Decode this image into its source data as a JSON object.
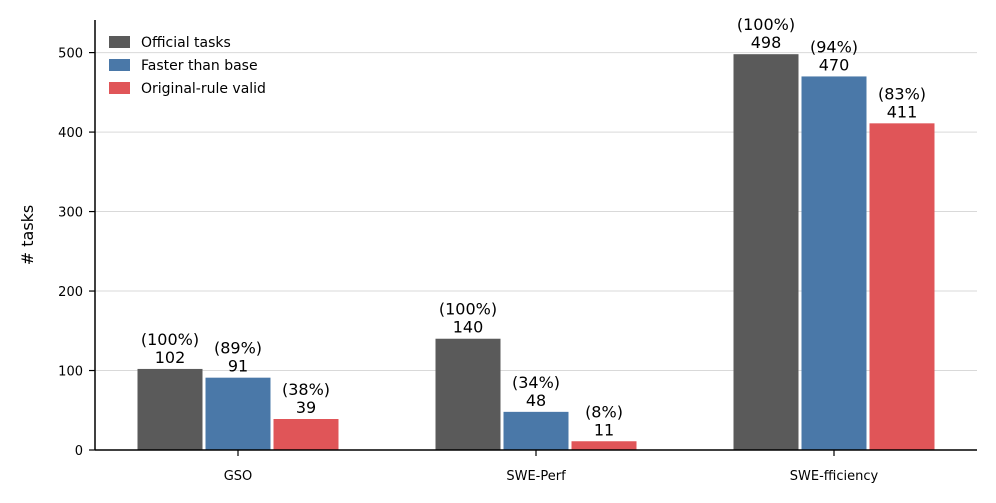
{
  "chart_data": {
    "type": "bar",
    "title": "",
    "xlabel": "",
    "ylabel": "# tasks",
    "ylim": [
      0,
      540
    ],
    "yticks": [
      0,
      100,
      200,
      300,
      400,
      500
    ],
    "grid": "y",
    "legend_position": "top-left",
    "categories": [
      "GSO",
      "SWE-Perf",
      "SWE-fficiency"
    ],
    "series": [
      {
        "name": "Official tasks",
        "color": "#5a5a5a",
        "values": [
          102,
          140,
          498
        ],
        "pct_labels": [
          "(100%)",
          "(100%)",
          "(100%)"
        ]
      },
      {
        "name": "Faster than base",
        "color": "#4a78a8",
        "values": [
          91,
          48,
          470
        ],
        "pct_labels": [
          "(89%)",
          "(34%)",
          "(94%)"
        ]
      },
      {
        "name": "Original-rule valid",
        "color": "#e05558",
        "values": [
          39,
          11,
          411
        ],
        "pct_labels": [
          "(38%)",
          "(8%)",
          "(83%)"
        ]
      }
    ]
  }
}
